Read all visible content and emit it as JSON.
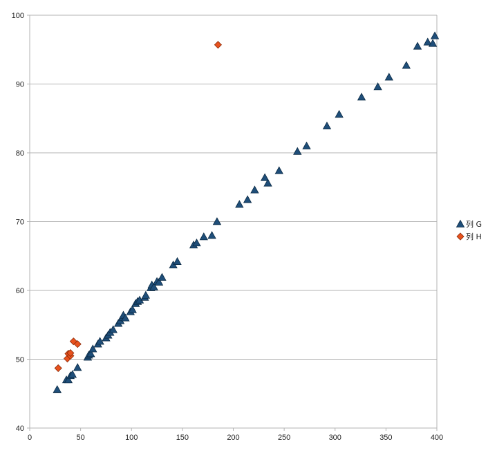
{
  "chart_data": {
    "type": "scatter",
    "xlim": [
      0,
      400
    ],
    "ylim": [
      40,
      100
    ],
    "x_ticks": [
      0,
      50,
      100,
      150,
      200,
      250,
      300,
      350,
      400
    ],
    "y_ticks": [
      40,
      50,
      60,
      70,
      80,
      90,
      100
    ],
    "grid": {
      "horizontal": true,
      "vertical": false
    },
    "legend_position": "right",
    "series": [
      {
        "name": "列 G",
        "color": "#1f4e79",
        "marker": "triangle",
        "points": [
          [
            27,
            45.6
          ],
          [
            36,
            47.0
          ],
          [
            38,
            47.0
          ],
          [
            40,
            47.6
          ],
          [
            42,
            47.8
          ],
          [
            47,
            48.8
          ],
          [
            57,
            50.3
          ],
          [
            58,
            50.6
          ],
          [
            60,
            50.8
          ],
          [
            62,
            51.5
          ],
          [
            67,
            52.2
          ],
          [
            69,
            52.6
          ],
          [
            75,
            53.1
          ],
          [
            77,
            53.5
          ],
          [
            79,
            53.9
          ],
          [
            82,
            54.3
          ],
          [
            87,
            55.2
          ],
          [
            89,
            55.6
          ],
          [
            91,
            56.1
          ],
          [
            92,
            56.4
          ],
          [
            94,
            56.0
          ],
          [
            99,
            56.9
          ],
          [
            101,
            57.2
          ],
          [
            104,
            58.1
          ],
          [
            106,
            58.4
          ],
          [
            108,
            58.6
          ],
          [
            113,
            59.0
          ],
          [
            114,
            59.3
          ],
          [
            119,
            60.4
          ],
          [
            120,
            60.8
          ],
          [
            122,
            60.5
          ],
          [
            125,
            61.3
          ],
          [
            127,
            61.2
          ],
          [
            130,
            61.9
          ],
          [
            141,
            63.7
          ],
          [
            145,
            64.2
          ],
          [
            161,
            66.6
          ],
          [
            164,
            66.9
          ],
          [
            171,
            67.8
          ],
          [
            179,
            68.0
          ],
          [
            184,
            70.0
          ],
          [
            206,
            72.5
          ],
          [
            214,
            73.2
          ],
          [
            221,
            74.6
          ],
          [
            231,
            76.4
          ],
          [
            234,
            75.6
          ],
          [
            245,
            77.4
          ],
          [
            263,
            80.2
          ],
          [
            272,
            81.0
          ],
          [
            292,
            83.9
          ],
          [
            304,
            85.6
          ],
          [
            326,
            88.1
          ],
          [
            342,
            89.6
          ],
          [
            353,
            91.0
          ],
          [
            370,
            92.7
          ],
          [
            381,
            95.5
          ],
          [
            391,
            96.1
          ],
          [
            396,
            95.9
          ],
          [
            398,
            97.0
          ]
        ]
      },
      {
        "name": "列 H",
        "color": "#e8521e",
        "marker": "diamond",
        "points": [
          [
            28,
            48.7
          ],
          [
            37,
            50.1
          ],
          [
            38,
            50.8
          ],
          [
            40,
            50.5
          ],
          [
            40,
            50.9
          ],
          [
            43,
            52.6
          ],
          [
            47,
            52.2
          ],
          [
            185,
            95.7
          ]
        ]
      }
    ]
  }
}
